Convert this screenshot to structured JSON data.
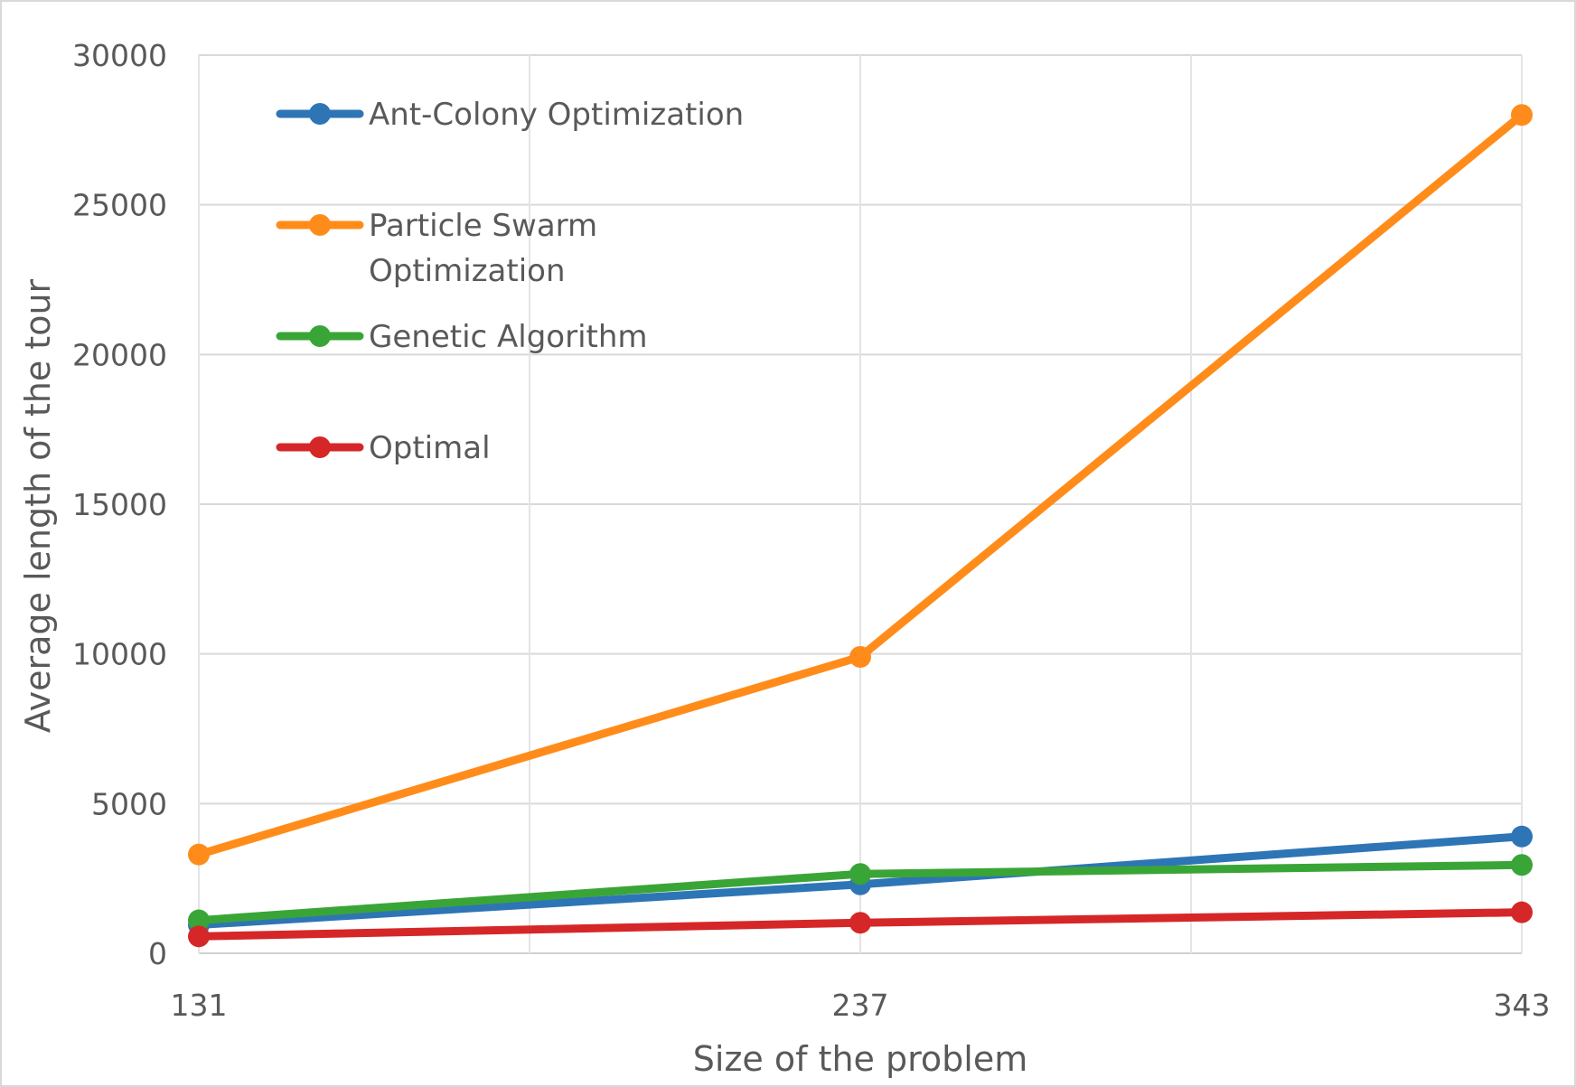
{
  "chart_data": {
    "type": "line",
    "xlabel": "Size of the problem",
    "ylabel": "Average length of the tour",
    "categories": [
      "131",
      "237",
      "343"
    ],
    "ylim": [
      0,
      30000
    ],
    "yticks": [
      0,
      5000,
      10000,
      15000,
      20000,
      25000,
      30000
    ],
    "ytick_labels": [
      "0",
      "5000",
      "10000",
      "15000",
      "20000",
      "25000",
      "30000"
    ],
    "grid": true,
    "legend": "top-left",
    "series": [
      {
        "name": "Ant-Colony Optimization",
        "color": "#2e75b6",
        "values": [
          950,
          2300,
          3900
        ]
      },
      {
        "name": "Particle Swarm Optimization",
        "legend_lines": [
          "Particle Swarm",
          "Optimization"
        ],
        "color": "#ff8c1a",
        "values": [
          3300,
          9900,
          28000
        ]
      },
      {
        "name": "Genetic Algorithm",
        "color": "#3aa537",
        "values": [
          1100,
          2650,
          2950
        ]
      },
      {
        "name": "Optimal",
        "color": "#d62728",
        "values": [
          564,
          1019,
          1368
        ]
      }
    ]
  }
}
